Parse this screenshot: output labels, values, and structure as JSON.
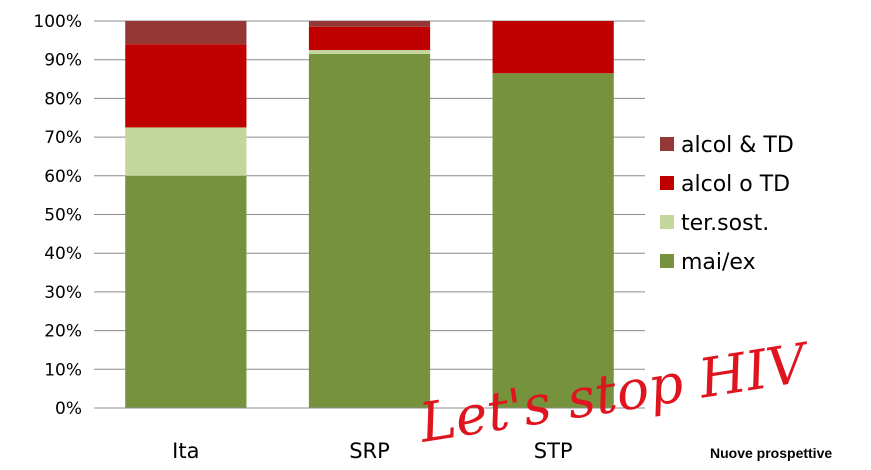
{
  "chart_data": {
    "type": "bar",
    "stacked": true,
    "percent": true,
    "categories": [
      "Ita",
      "SRP",
      "STP"
    ],
    "series": [
      {
        "name": "mai/ex",
        "color": "#76923c",
        "values": [
          60,
          91.5,
          86.5
        ]
      },
      {
        "name": "ter.sost.",
        "color": "#c3d69b",
        "values": [
          12.5,
          1,
          0
        ]
      },
      {
        "name": "alcol o TD",
        "color": "#c00000",
        "values": [
          21.5,
          6,
          13.5
        ]
      },
      {
        "name": "alcol & TD",
        "color": "#953735",
        "values": [
          6,
          1.5,
          0
        ]
      }
    ],
    "y_ticks": [
      "0%",
      "10%",
      "20%",
      "30%",
      "40%",
      "50%",
      "60%",
      "70%",
      "80%",
      "90%",
      "100%"
    ],
    "ylim": [
      0,
      100
    ],
    "grid": true,
    "legend_position": "right",
    "legend_order": [
      "alcol & TD",
      "alcol o TD",
      "ter.sost.",
      "mai/ex"
    ]
  },
  "logo": {
    "script_text": "Let's stop HIV",
    "subtitle": "Nuove prospettive"
  }
}
